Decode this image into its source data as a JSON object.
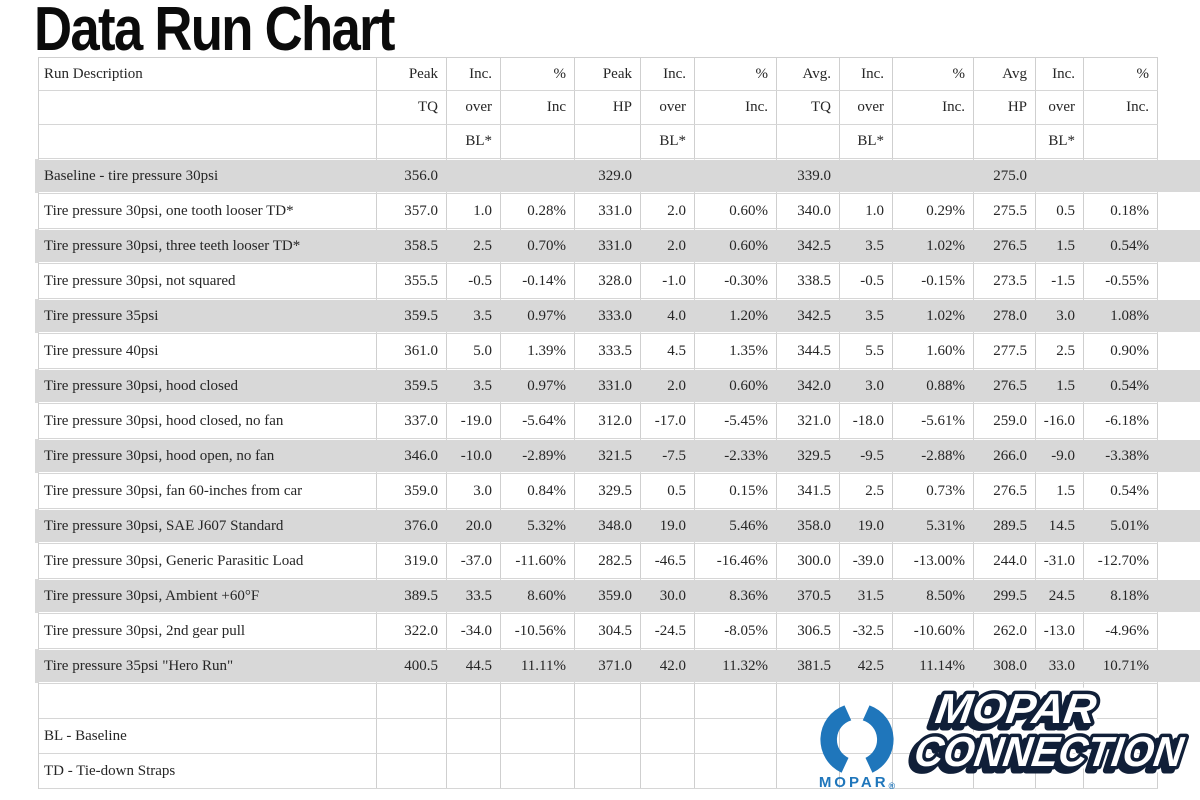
{
  "page": {
    "title": "Data Run Chart",
    "background": "#ffffff"
  },
  "chart_data": {
    "type": "table",
    "title": "Data Run Chart",
    "header_rows": [
      [
        "Run Description",
        "Peak",
        "Inc.",
        "%",
        "Peak",
        "Inc.",
        "%",
        "Avg.",
        "Inc.",
        "%",
        "Avg",
        "Inc.",
        "%"
      ],
      [
        "",
        "TQ",
        "over",
        "Inc",
        "HP",
        "over",
        "Inc.",
        "TQ",
        "over",
        "Inc.",
        "HP",
        "over",
        "Inc."
      ],
      [
        "",
        "",
        "BL*",
        "",
        "",
        "BL*",
        "",
        "",
        "BL*",
        "",
        "",
        "BL*",
        ""
      ]
    ],
    "rows": [
      [
        "Baseline - tire pressure 30psi",
        "356.0",
        "",
        "",
        "329.0",
        "",
        "",
        "339.0",
        "",
        "",
        "275.0",
        "",
        ""
      ],
      [
        "Tire pressure 30psi, one tooth looser TD*",
        "357.0",
        "1.0",
        "0.28%",
        "331.0",
        "2.0",
        "0.60%",
        "340.0",
        "1.0",
        "0.29%",
        "275.5",
        "0.5",
        "0.18%"
      ],
      [
        "Tire pressure 30psi, three teeth looser TD*",
        "358.5",
        "2.5",
        "0.70%",
        "331.0",
        "2.0",
        "0.60%",
        "342.5",
        "3.5",
        "1.02%",
        "276.5",
        "1.5",
        "0.54%"
      ],
      [
        "Tire pressure 30psi, not squared",
        "355.5",
        "-0.5",
        "-0.14%",
        "328.0",
        "-1.0",
        "-0.30%",
        "338.5",
        "-0.5",
        "-0.15%",
        "273.5",
        "-1.5",
        "-0.55%"
      ],
      [
        "Tire pressure 35psi",
        "359.5",
        "3.5",
        "0.97%",
        "333.0",
        "4.0",
        "1.20%",
        "342.5",
        "3.5",
        "1.02%",
        "278.0",
        "3.0",
        "1.08%"
      ],
      [
        "Tire pressure 40psi",
        "361.0",
        "5.0",
        "1.39%",
        "333.5",
        "4.5",
        "1.35%",
        "344.5",
        "5.5",
        "1.60%",
        "277.5",
        "2.5",
        "0.90%"
      ],
      [
        "Tire pressure 30psi, hood closed",
        "359.5",
        "3.5",
        "0.97%",
        "331.0",
        "2.0",
        "0.60%",
        "342.0",
        "3.0",
        "0.88%",
        "276.5",
        "1.5",
        "0.54%"
      ],
      [
        "Tire pressure 30psi, hood closed, no fan",
        "337.0",
        "-19.0",
        "-5.64%",
        "312.0",
        "-17.0",
        "-5.45%",
        "321.0",
        "-18.0",
        "-5.61%",
        "259.0",
        "-16.0",
        "-6.18%"
      ],
      [
        "Tire pressure 30psi, hood open, no fan",
        "346.0",
        "-10.0",
        "-2.89%",
        "321.5",
        "-7.5",
        "-2.33%",
        "329.5",
        "-9.5",
        "-2.88%",
        "266.0",
        "-9.0",
        "-3.38%"
      ],
      [
        "Tire pressure 30psi, fan 60-inches from car",
        "359.0",
        "3.0",
        "0.84%",
        "329.5",
        "0.5",
        "0.15%",
        "341.5",
        "2.5",
        "0.73%",
        "276.5",
        "1.5",
        "0.54%"
      ],
      [
        "Tire pressure 30psi, SAE J607 Standard",
        "376.0",
        "20.0",
        "5.32%",
        "348.0",
        "19.0",
        "5.46%",
        "358.0",
        "19.0",
        "5.31%",
        "289.5",
        "14.5",
        "5.01%"
      ],
      [
        "Tire pressure 30psi, Generic Parasitic Load",
        "319.0",
        "-37.0",
        "-11.60%",
        "282.5",
        "-46.5",
        "-16.46%",
        "300.0",
        "-39.0",
        "-13.00%",
        "244.0",
        "-31.0",
        "-12.70%"
      ],
      [
        "Tire pressure 30psi, Ambient +60°F",
        "389.5",
        "33.5",
        "8.60%",
        "359.0",
        "30.0",
        "8.36%",
        "370.5",
        "31.5",
        "8.50%",
        "299.5",
        "24.5",
        "8.18%"
      ],
      [
        "Tire pressure 30psi, 2nd gear pull",
        "322.0",
        "-34.0",
        "-10.56%",
        "304.5",
        "-24.5",
        "-8.05%",
        "306.5",
        "-32.5",
        "-10.60%",
        "262.0",
        "-13.0",
        "-4.96%"
      ],
      [
        "Tire pressure 35psi \"Hero Run\"",
        "400.5",
        "44.5",
        "11.11%",
        "371.0",
        "42.0",
        "11.32%",
        "381.5",
        "42.5",
        "11.14%",
        "308.0",
        "33.0",
        "10.71%"
      ]
    ],
    "footer_rows": [
      [
        "",
        "",
        "",
        "",
        "",
        "",
        "",
        "",
        "",
        "",
        "",
        "",
        ""
      ],
      [
        "BL - Baseline",
        "",
        "",
        "",
        "",
        "",
        "",
        "",
        "",
        "",
        "",
        "",
        ""
      ],
      [
        "TD - Tie-down Straps",
        "",
        "",
        "",
        "",
        "",
        "",
        "",
        "",
        "",
        "",
        "",
        ""
      ]
    ],
    "layout": {
      "stripe_color": "#d8d8d8",
      "gridline_color": "#cfcfcf",
      "striped_rows": "alternating starting with first data row"
    }
  },
  "logo": {
    "brand": "MOPAR",
    "reg": "®",
    "line1": "MOPAR",
    "line2": "CONNECTION",
    "blue": "#1f76bb",
    "outline": "#101f38",
    "fill": "#ffffff"
  }
}
